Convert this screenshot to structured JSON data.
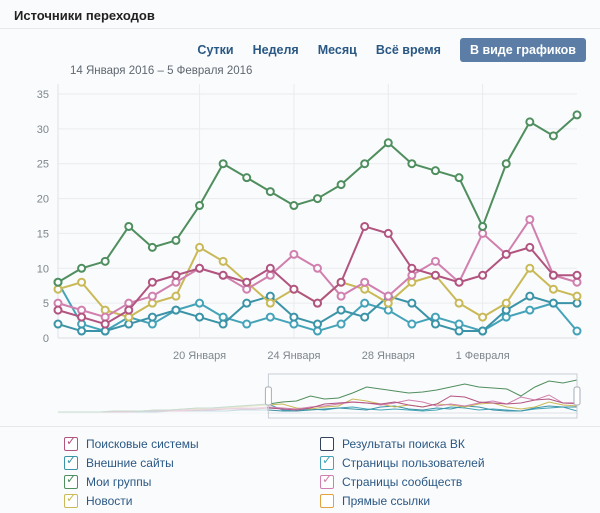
{
  "header": {
    "title": "Источники переходов"
  },
  "tabs": {
    "items": [
      {
        "label": "Сутки",
        "active": false
      },
      {
        "label": "Неделя",
        "active": false
      },
      {
        "label": "Месяц",
        "active": false
      },
      {
        "label": "Всё время",
        "active": false
      },
      {
        "label": "В виде графиков",
        "active": true
      }
    ]
  },
  "icons": {
    "check": "✓"
  },
  "colors": {
    "link": "#2a5885",
    "tab_active_bg": "#5c7ea6",
    "background": "#fafbfc",
    "grid": "#e9ebee",
    "axis_line": "#dfe2e6",
    "axis_text": "#7e868d",
    "date_text": "#5f6770",
    "divider": "#e7e8ec"
  },
  "chart_data": {
    "type": "line",
    "title": "Источники переходов",
    "date_range": "14 Января 2016 – 5 Февраля 2016",
    "ylim": [
      0,
      35
    ],
    "y_tick_step": 5,
    "grid": true,
    "x_tick_labels": [
      "20 Января",
      "24 Января",
      "28 Января",
      "1 Февраля"
    ],
    "x_tick_indices": [
      6,
      10,
      14,
      18
    ],
    "series": [
      {
        "id": "user-pages",
        "name": "Страницы пользователей",
        "color": "#44a3b8",
        "values": [
          8,
          2,
          1,
          3,
          2,
          4,
          5,
          3,
          2,
          3,
          2,
          1,
          2,
          5,
          4,
          2,
          3,
          2,
          1,
          3,
          4,
          5,
          1
        ]
      },
      {
        "id": "external-sites",
        "name": "Внешние сайты",
        "color": "#3b93a7",
        "values": [
          2,
          1,
          1,
          2,
          3,
          4,
          3,
          2,
          5,
          6,
          3,
          2,
          4,
          3,
          6,
          5,
          2,
          1,
          1,
          4,
          6,
          5,
          5
        ]
      },
      {
        "id": "news",
        "name": "Новости",
        "color": "#c9b957",
        "values": [
          7,
          8,
          4,
          3,
          5,
          6,
          13,
          11,
          8,
          5,
          7,
          5,
          8,
          7,
          5,
          8,
          9,
          5,
          3,
          5,
          10,
          7,
          6
        ]
      },
      {
        "id": "community-pages",
        "name": "Страницы сообществ",
        "color": "#d07fae",
        "values": [
          5,
          4,
          3,
          5,
          6,
          8,
          10,
          9,
          7,
          9,
          12,
          10,
          6,
          8,
          6,
          9,
          11,
          8,
          15,
          12,
          17,
          9,
          8
        ]
      },
      {
        "id": "search-engines",
        "name": "Поисковые системы",
        "color": "#b25480",
        "values": [
          4,
          3,
          2,
          4,
          8,
          9,
          10,
          9,
          8,
          10,
          7,
          5,
          8,
          16,
          15,
          10,
          9,
          8,
          9,
          12,
          13,
          9,
          9
        ]
      },
      {
        "id": "my-groups",
        "name": "Мои группы",
        "color": "#4f8e5e",
        "values": [
          8,
          10,
          11,
          16,
          13,
          14,
          19,
          25,
          23,
          21,
          19,
          20,
          22,
          25,
          28,
          25,
          24,
          23,
          16,
          25,
          31,
          29,
          32
        ]
      }
    ],
    "navigator": {
      "prefix_points": 15
    }
  },
  "legend": {
    "columns": [
      {
        "items": [
          {
            "id": "search-engines",
            "label": "Поисковые системы",
            "color": "#b25480",
            "checked": true
          },
          {
            "id": "external-sites",
            "label": "Внешние сайты",
            "color": "#3b93a7",
            "checked": true
          },
          {
            "id": "my-groups",
            "label": "Мои группы",
            "color": "#4f8e5e",
            "checked": true
          },
          {
            "id": "news",
            "label": "Новости",
            "color": "#c9b957",
            "checked": true
          }
        ]
      },
      {
        "items": [
          {
            "id": "vk-search-results",
            "label": "Результаты поиска ВК",
            "color": "#33435a",
            "checked": false
          },
          {
            "id": "user-pages",
            "label": "Страницы пользователей",
            "color": "#44a3b8",
            "checked": true
          },
          {
            "id": "community-pages",
            "label": "Страницы сообществ",
            "color": "#d07fae",
            "checked": true
          },
          {
            "id": "direct-links",
            "label": "Прямые ссылки",
            "color": "#e2a23f",
            "checked": false
          }
        ]
      }
    ]
  }
}
